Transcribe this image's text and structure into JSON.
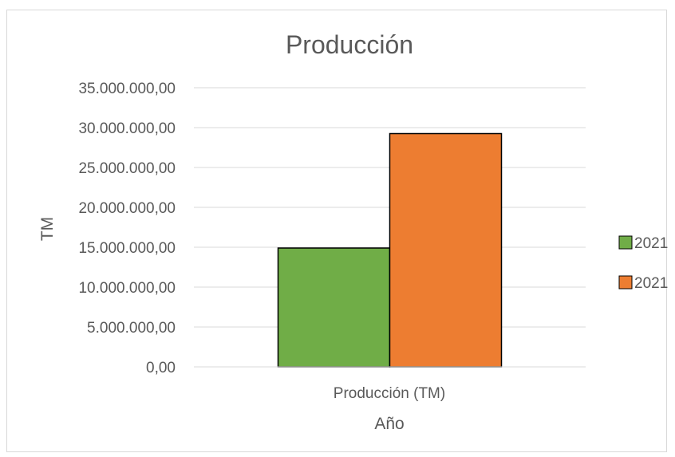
{
  "chart_data": {
    "type": "bar",
    "title": "Producción",
    "xlabel": "Año",
    "ylabel": "TM",
    "categories": [
      "Producción (TM)"
    ],
    "series": [
      {
        "name": "2021",
        "values": [
          14900000
        ],
        "color": "#70ad47"
      },
      {
        "name": "2021",
        "values": [
          29250000
        ],
        "color": "#ed7d31"
      }
    ],
    "ylim": [
      0,
      35000000
    ],
    "yticks": [
      "0,00",
      "5.000.000,00",
      "10.000.000,00",
      "15.000.000,00",
      "20.000.000,00",
      "25.000.000,00",
      "30.000.000,00",
      "35.000.000,00"
    ],
    "ytick_values": [
      0,
      5000000,
      10000000,
      15000000,
      20000000,
      25000000,
      30000000,
      35000000
    ],
    "grid": true,
    "gridline_color": "#d9d9d9",
    "legend_position": "right"
  }
}
